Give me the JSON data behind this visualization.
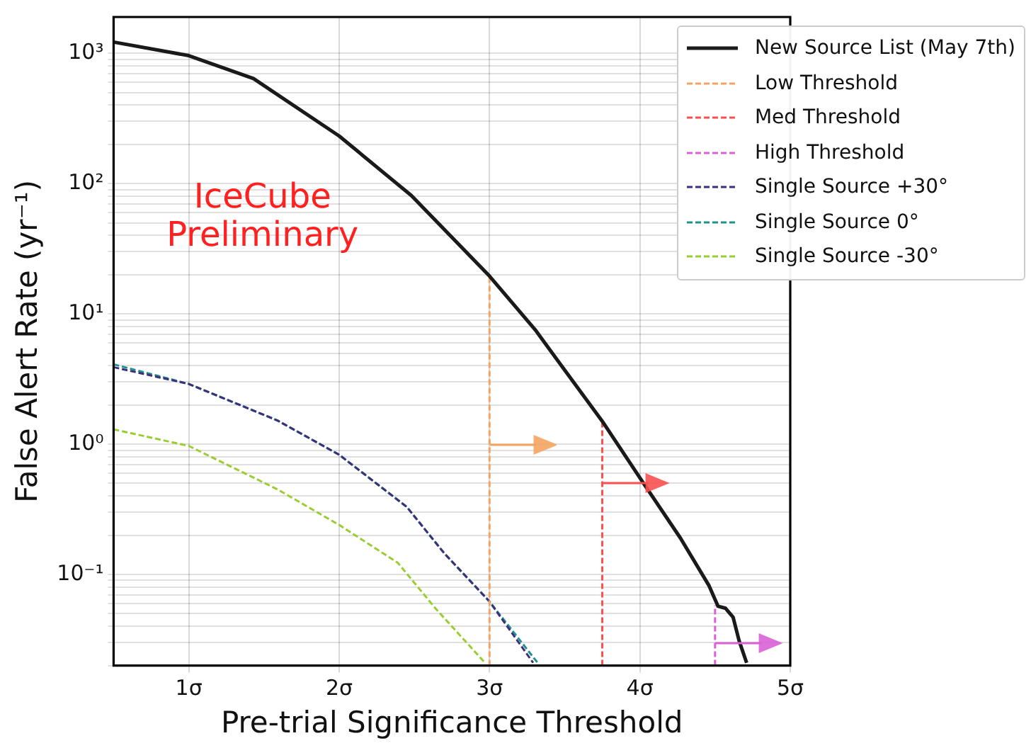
{
  "chart_data": {
    "type": "line",
    "xlabel": "Pre-trial Significance Threshold",
    "ylabel": "False Alert Rate (yr⁻¹)",
    "annotations": [
      "IceCube\nPreliminary"
    ],
    "xlim": [
      0.5,
      5
    ],
    "xticks": [
      {
        "value": 1,
        "label": "1σ"
      },
      {
        "value": 2,
        "label": "2σ"
      },
      {
        "value": 3,
        "label": "3σ"
      },
      {
        "value": 4,
        "label": "4σ"
      },
      {
        "value": 5,
        "label": "5σ"
      }
    ],
    "log": "y",
    "ylim": [
      0.02,
      1900
    ],
    "yticks": [
      {
        "value": 0.02,
        "label": null
      },
      {
        "value": 0.03,
        "label": null
      },
      {
        "value": 0.04,
        "label": null
      },
      {
        "value": 0.05,
        "label": null
      },
      {
        "value": 0.06,
        "label": null
      },
      {
        "value": 0.07,
        "label": null
      },
      {
        "value": 0.08,
        "label": null
      },
      {
        "value": 0.09,
        "label": null
      },
      {
        "value": 0.1,
        "label": "10⁻¹"
      },
      {
        "value": 0.2,
        "label": null
      },
      {
        "value": 0.3,
        "label": null
      },
      {
        "value": 0.4,
        "label": null
      },
      {
        "value": 0.5,
        "label": null
      },
      {
        "value": 0.6,
        "label": null
      },
      {
        "value": 0.7,
        "label": null
      },
      {
        "value": 0.8,
        "label": null
      },
      {
        "value": 0.9,
        "label": null
      },
      {
        "value": 1,
        "label": "10⁰"
      },
      {
        "value": 2,
        "label": null
      },
      {
        "value": 3,
        "label": null
      },
      {
        "value": 4,
        "label": null
      },
      {
        "value": 5,
        "label": null
      },
      {
        "value": 6,
        "label": null
      },
      {
        "value": 7,
        "label": null
      },
      {
        "value": 8,
        "label": null
      },
      {
        "value": 9,
        "label": null
      },
      {
        "value": 10,
        "label": "10¹"
      },
      {
        "value": 20,
        "label": null
      },
      {
        "value": 30,
        "label": null
      },
      {
        "value": 40,
        "label": null
      },
      {
        "value": 50,
        "label": null
      },
      {
        "value": 60,
        "label": null
      },
      {
        "value": 70,
        "label": null
      },
      {
        "value": 80,
        "label": null
      },
      {
        "value": 90,
        "label": null
      },
      {
        "value": 100,
        "label": "10²"
      },
      {
        "value": 200,
        "label": null
      },
      {
        "value": 300,
        "label": null
      },
      {
        "value": 400,
        "label": null
      },
      {
        "value": 500,
        "label": null
      },
      {
        "value": 600,
        "label": null
      },
      {
        "value": 700,
        "label": null
      },
      {
        "value": 800,
        "label": null
      },
      {
        "value": 900,
        "label": null
      },
      {
        "value": 1000,
        "label": "10³"
      }
    ],
    "grid": true,
    "legend": "top right",
    "series": [
      {
        "name": "New Source List (May 7th)",
        "color": "#1a1a1a",
        "line_style": "solid",
        "x": [
          0.5,
          1.0,
          1.43,
          2.0,
          2.48,
          3.0,
          3.31,
          3.5,
          3.75,
          4.03,
          4.27,
          4.46,
          4.52,
          4.57,
          4.62,
          4.66,
          4.71
        ],
        "values": [
          1220,
          960,
          640,
          232,
          81,
          19.5,
          7.4,
          3.7,
          1.5,
          0.49,
          0.19,
          0.082,
          0.057,
          0.055,
          0.047,
          0.031,
          0.021
        ]
      },
      {
        "name": "Low Threshold",
        "color": "#f4a460",
        "line_style": "dashed",
        "x": [
          3,
          3
        ],
        "values": [
          0.02,
          19.5
        ]
      },
      {
        "name": "Med Threshold",
        "color": "#fa5050",
        "line_style": "dashed",
        "x": [
          3.75,
          3.75
        ],
        "values": [
          0.02,
          1.5
        ]
      },
      {
        "name": "High Threshold",
        "color": "#da60d6",
        "line_style": "dashed",
        "x": [
          4.5,
          4.5
        ],
        "values": [
          0.02,
          0.058
        ]
      },
      {
        "name": "Single Source +30°",
        "color": "#3e2f7a",
        "line_style": "dashed",
        "x": [
          0.5,
          1.0,
          1.59,
          2.0,
          2.45,
          2.7,
          3.0,
          3.29
        ],
        "values": [
          3.9,
          2.9,
          1.52,
          0.83,
          0.33,
          0.145,
          0.062,
          0.021
        ]
      },
      {
        "name": "Single Source 0°",
        "color": "#21918c",
        "line_style": "dashed",
        "x": [
          0.5,
          1.0,
          1.59,
          2.0,
          2.45,
          2.7,
          3.0,
          3.32
        ],
        "values": [
          4.1,
          2.9,
          1.52,
          0.83,
          0.33,
          0.145,
          0.062,
          0.021
        ]
      },
      {
        "name": "Single Source -30°",
        "color": "#9acd32",
        "line_style": "dashed",
        "x": [
          0.5,
          1.0,
          1.59,
          2.0,
          2.39,
          2.64,
          2.97
        ],
        "values": [
          1.3,
          0.97,
          0.45,
          0.24,
          0.123,
          0.055,
          0.021
        ]
      }
    ]
  }
}
